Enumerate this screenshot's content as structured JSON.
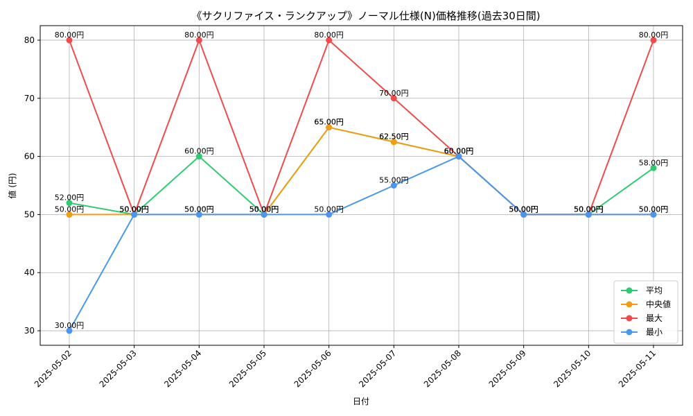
{
  "chart_data": {
    "type": "line",
    "title": "《サクリファイス・ランクアップ》ノーマル仕様(N)価格推移(過去30日間)",
    "xlabel": "日付",
    "ylabel": "値 (円)",
    "categories": [
      "2025-05-02",
      "2025-05-03",
      "2025-05-04",
      "2025-05-05",
      "2025-05-06",
      "2025-05-07",
      "2025-05-08",
      "2025-05-09",
      "2025-05-10",
      "2025-05-11"
    ],
    "ylim": [
      27.5,
      82.5
    ],
    "yticks": [
      30,
      40,
      50,
      60,
      70,
      80
    ],
    "grid": true,
    "legend_position": "bottom-right",
    "value_suffix": "円",
    "series": [
      {
        "name": "平均",
        "color": "#2ecc71",
        "values": [
          52,
          50,
          60,
          50,
          65,
          62.5,
          60,
          50,
          50,
          58
        ]
      },
      {
        "name": "中央値",
        "color": "#f39c12",
        "values": [
          50,
          50,
          50,
          50,
          65,
          62.5,
          60,
          50,
          50,
          50
        ]
      },
      {
        "name": "最大",
        "color": "#f04a4a",
        "values": [
          80,
          50,
          80,
          50,
          80,
          70,
          60,
          50,
          50,
          80
        ]
      },
      {
        "name": "最小",
        "color": "#4a97ee",
        "values": [
          30,
          50,
          50,
          50,
          50,
          55,
          60,
          50,
          50,
          50
        ]
      }
    ]
  }
}
